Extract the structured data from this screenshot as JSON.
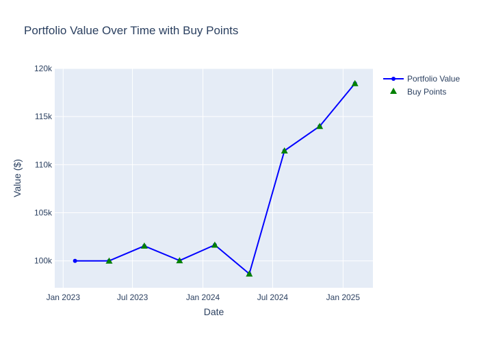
{
  "chart_data": {
    "type": "line",
    "title": "Portfolio Value Over Time with Buy Points",
    "xlabel": "Date",
    "ylabel": "Value ($)",
    "x_ticks": [
      "Jan 2023",
      "Jul 2023",
      "Jan 2024",
      "Jul 2024",
      "Jan 2025"
    ],
    "y_ticks": [
      "100k",
      "105k",
      "110k",
      "115k",
      "120k"
    ],
    "ylim": [
      97200,
      120000
    ],
    "xlim": [
      "2022-12-10",
      "2025-03-20"
    ],
    "series": [
      {
        "name": "Portfolio Value",
        "color": "#0000ff",
        "marker": "circle",
        "x": [
          "2023-02-01",
          "2023-05-01",
          "2023-08-01",
          "2023-11-01",
          "2024-02-01",
          "2024-05-01",
          "2024-08-01",
          "2024-11-01",
          "2025-02-01"
        ],
        "y": [
          100000,
          100000,
          101550,
          100030,
          101650,
          98650,
          111450,
          114000,
          118450
        ]
      },
      {
        "name": "Buy Points",
        "color": "#008000",
        "marker": "triangle-up",
        "x": [
          "2023-05-01",
          "2023-08-01",
          "2023-11-01",
          "2024-02-01",
          "2024-05-01",
          "2024-08-01",
          "2024-11-01",
          "2025-02-01"
        ],
        "y": [
          100000,
          101550,
          100030,
          101650,
          98650,
          111450,
          114000,
          118450
        ]
      }
    ],
    "grid": true,
    "legend_position": "top-right",
    "plot_background": "#e5ecf6"
  }
}
